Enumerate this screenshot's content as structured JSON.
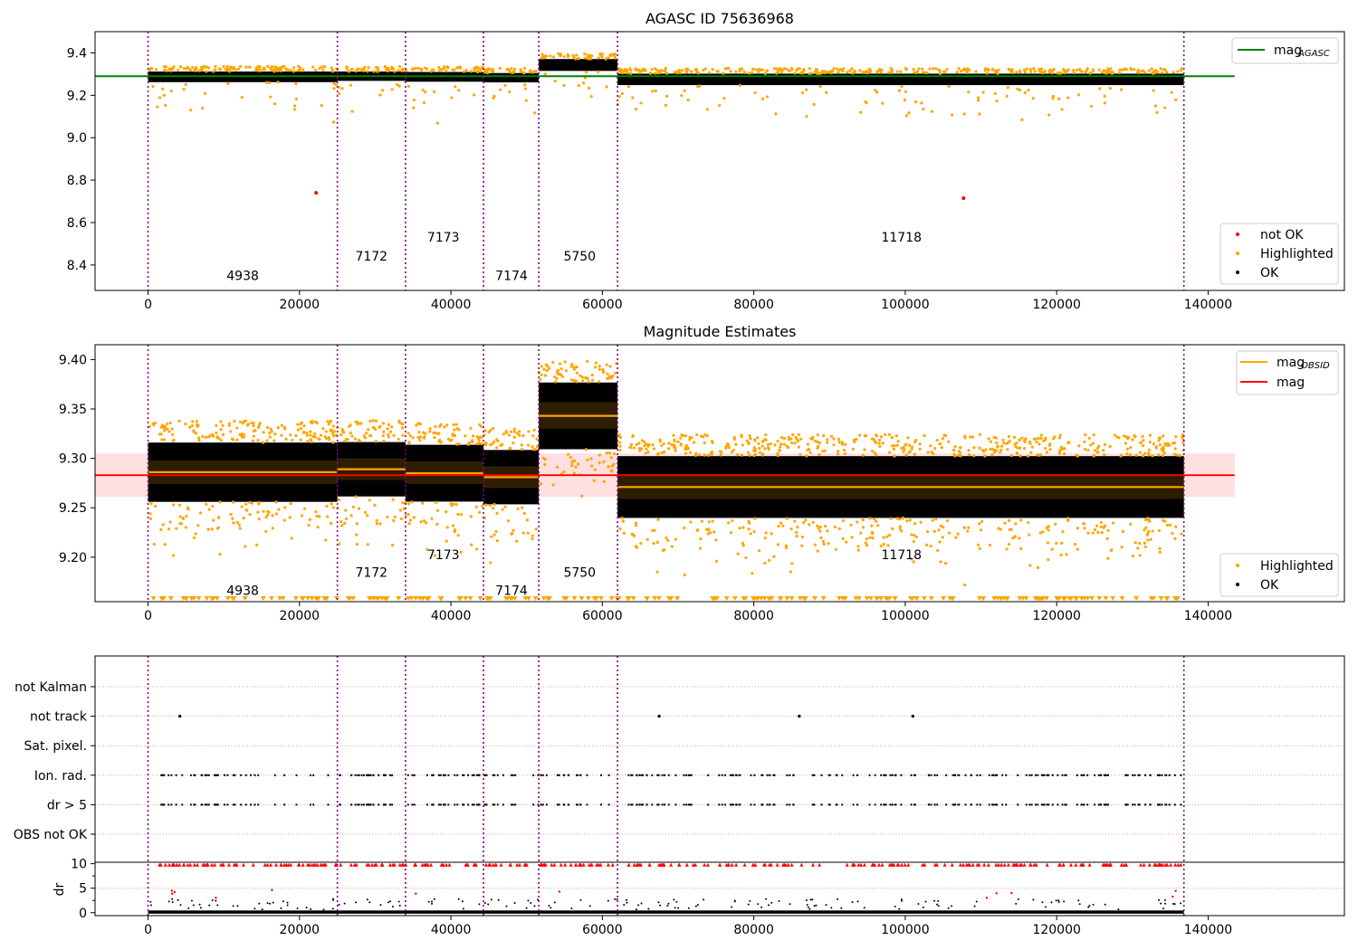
{
  "figure": {
    "id": "agasc-75636968-figure"
  },
  "obs_boundaries": [
    0,
    25000,
    34000,
    44300,
    51600,
    62000,
    136800
  ],
  "chart_data": [
    {
      "type": "scatter",
      "title": "AGASC ID 75636968",
      "xlim": [
        -7000,
        158000
      ],
      "ylim": [
        8.28,
        9.5
      ],
      "xticks": [
        0,
        20000,
        40000,
        60000,
        80000,
        100000,
        120000,
        140000
      ],
      "yticks": [
        8.4,
        8.6,
        8.8,
        9.0,
        9.2,
        9.4
      ],
      "ytick_labels": [
        "8.4",
        "8.6",
        "8.8",
        "9.0",
        "9.2",
        "9.4"
      ],
      "obs_labels": [
        {
          "text": "4938",
          "x": 12500,
          "y": 8.33
        },
        {
          "text": "7172",
          "x": 29500,
          "y": 8.42
        },
        {
          "text": "7173",
          "x": 39000,
          "y": 8.51
        },
        {
          "text": "7174",
          "x": 48000,
          "y": 8.33
        },
        {
          "text": "5750",
          "x": 57000,
          "y": 8.42
        },
        {
          "text": "11718",
          "x": 99500,
          "y": 8.51
        }
      ],
      "segments": [
        {
          "x0": 0,
          "x1": 25000,
          "center": 9.287,
          "half_width": 0.025
        },
        {
          "x0": 25000,
          "x1": 34000,
          "center": 9.29,
          "half_width": 0.022
        },
        {
          "x0": 34000,
          "x1": 44300,
          "center": 9.287,
          "half_width": 0.023
        },
        {
          "x0": 44300,
          "x1": 51600,
          "center": 9.283,
          "half_width": 0.022
        },
        {
          "x0": 51600,
          "x1": 62000,
          "center": 9.343,
          "half_width": 0.028
        },
        {
          "x0": 62000,
          "x1": 136800,
          "center": 9.275,
          "half_width": 0.027
        }
      ],
      "mag_agasc": {
        "value": 9.29,
        "x0": -7000,
        "x1": 143500,
        "color": "#008000"
      },
      "not_ok_points": [
        {
          "x": 22200,
          "y": 8.74
        },
        {
          "x": 107700,
          "y": 8.715
        }
      ],
      "legend_top": [
        {
          "label": "mag",
          "sub": "AGASC",
          "color": "#008000"
        }
      ],
      "legend_bottom": [
        {
          "label": "not OK",
          "color": "#ff0000"
        },
        {
          "label": "Highlighted",
          "color": "#ffa500"
        },
        {
          "label": "OK",
          "color": "#000000"
        }
      ]
    },
    {
      "type": "scatter",
      "title": "Magnitude Estimates",
      "xlim": [
        -7000,
        158000
      ],
      "ylim": [
        9.155,
        9.415
      ],
      "xticks": [
        0,
        20000,
        40000,
        60000,
        80000,
        100000,
        120000,
        140000
      ],
      "yticks": [
        9.2,
        9.25,
        9.3,
        9.35,
        9.4
      ],
      "ytick_labels": [
        "9.20",
        "9.25",
        "9.30",
        "9.35",
        "9.40"
      ],
      "obs_labels": [
        {
          "text": "4938",
          "x": 12500,
          "y": 9.162
        },
        {
          "text": "7172",
          "x": 29500,
          "y": 9.18
        },
        {
          "text": "7173",
          "x": 39000,
          "y": 9.198
        },
        {
          "text": "7174",
          "x": 48000,
          "y": 9.162
        },
        {
          "text": "5750",
          "x": 57000,
          "y": 9.18
        },
        {
          "text": "11718",
          "x": 99500,
          "y": 9.198
        }
      ],
      "mag_obsid": [
        {
          "x0": 0,
          "x1": 25000,
          "value": 9.286,
          "band": [
            9.274,
            9.298
          ]
        },
        {
          "x0": 25000,
          "x1": 34000,
          "value": 9.289,
          "band": [
            9.278,
            9.3
          ]
        },
        {
          "x0": 34000,
          "x1": 44300,
          "value": 9.285,
          "band": [
            9.274,
            9.297
          ]
        },
        {
          "x0": 44300,
          "x1": 51600,
          "value": 9.281,
          "band": [
            9.27,
            9.292
          ]
        },
        {
          "x0": 51600,
          "x1": 62000,
          "value": 9.343,
          "band": [
            9.33,
            9.357
          ]
        },
        {
          "x0": 62000,
          "x1": 136800,
          "value": 9.271,
          "band": [
            9.259,
            9.284
          ]
        }
      ],
      "mag": {
        "value": 9.283,
        "band": [
          9.261,
          9.305
        ],
        "x0": -7000,
        "x1": 143500,
        "color": "#ff0000"
      },
      "legend_top": [
        {
          "label": "mag",
          "sub": "OBSID",
          "color": "#ffa500"
        },
        {
          "label": "mag",
          "sub": "",
          "color": "#ff0000"
        }
      ],
      "legend_bottom": [
        {
          "label": "Highlighted",
          "color": "#ffa500"
        },
        {
          "label": "OK",
          "color": "#000000"
        }
      ]
    },
    {
      "type": "scatter",
      "title": "",
      "xlim": [
        -7000,
        158000
      ],
      "flag_rows": [
        "not Kalman",
        "not track",
        "Sat. pixel.",
        "Ion. rad.",
        "dr > 5",
        "OBS not OK"
      ],
      "not_track_x": [
        4200,
        67500,
        86000,
        101000
      ],
      "dr": {
        "ylim": [
          -0.6,
          10.3
        ],
        "yticks": [
          0,
          5,
          10
        ],
        "ylabel": "dr"
      },
      "xticks": [
        0,
        20000,
        40000,
        60000,
        80000,
        100000,
        120000,
        140000
      ]
    }
  ]
}
